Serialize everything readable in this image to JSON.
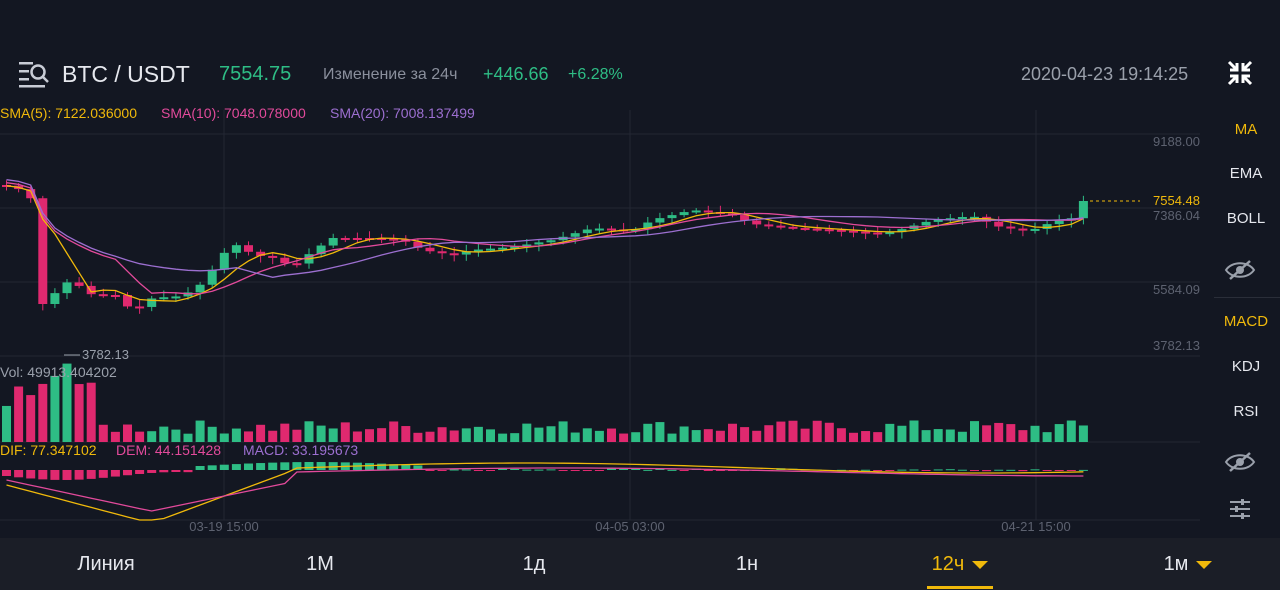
{
  "header": {
    "pair": "BTC / USDT",
    "price": "7554.75",
    "change_label": "Изменение за 24ч",
    "change_abs": "+446.66",
    "change_pct": "+6.28%",
    "datetime": "2020-04-23 19:14:25"
  },
  "indicators": {
    "sma5": "SMA(5): 7122.036000",
    "sma10": "SMA(10): 7048.078000",
    "sma20": "SMA(20): 7008.137499"
  },
  "price_axis": [
    "9188.00",
    "7386.04",
    "5584.09",
    "3782.13"
  ],
  "last_price_tag": "7554.48",
  "low_label": "3782.13",
  "volume_label": "Vol: 49913.404202",
  "macd": {
    "dif": "DIF: 77.347102",
    "dem": "DEM: 44.151428",
    "macd": "MACD: 33.195673"
  },
  "time_axis": [
    "03-19 15:00",
    "04-05 03:00",
    "04-21 15:00"
  ],
  "side_menu": {
    "main": [
      "MA",
      "EMA",
      "BOLL"
    ],
    "sub": [
      "MACD",
      "KDJ",
      "RSI"
    ]
  },
  "bottom_tabs": [
    "Линия",
    "1М",
    "1д",
    "1н",
    "12ч",
    "1м"
  ],
  "colors": {
    "up": "#2ebd85",
    "down": "#e0296f",
    "accent": "#f0b90b",
    "sma5": "#f0b90b",
    "sma10": "#e24a9b",
    "sma20": "#9c6fd0"
  }
}
